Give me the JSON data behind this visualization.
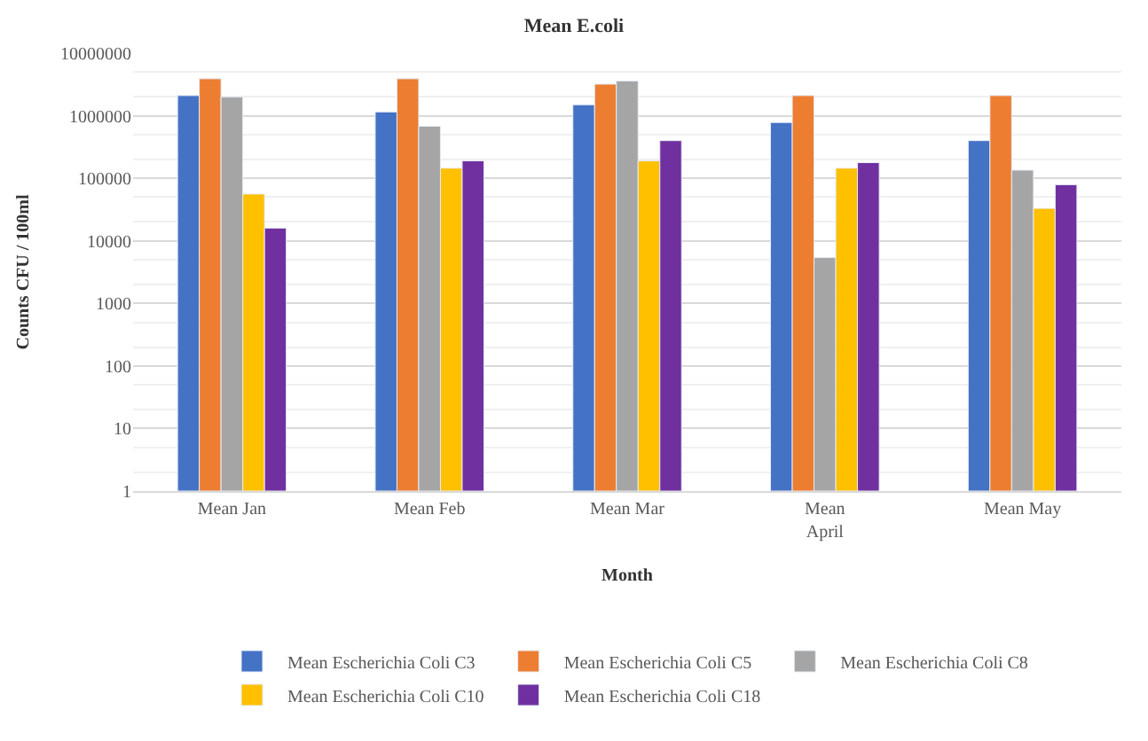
{
  "chart_data": {
    "type": "bar",
    "title": "Mean E.coli",
    "xlabel": "Month",
    "ylabel": "Counts CFU / 100ml",
    "categories": [
      "Mean Jan",
      "Mean Feb",
      "Mean Mar",
      "Mean April",
      "Mean May"
    ],
    "series": [
      {
        "name": "Mean Escherichia Coli C3",
        "color": "#4472c4",
        "values": [
          2100000,
          1150000,
          1500000,
          780000,
          400000
        ]
      },
      {
        "name": "Mean Escherichia Coli C5",
        "color": "#ed7d31",
        "values": [
          3900000,
          3900000,
          3200000,
          2100000,
          2100000
        ]
      },
      {
        "name": "Mean Escherichia Coli C8",
        "color": "#a5a5a5",
        "values": [
          2000000,
          680000,
          3600000,
          5400,
          135000
        ]
      },
      {
        "name": "Mean Escherichia Coli C10",
        "color": "#ffc000",
        "values": [
          56000,
          145000,
          190000,
          145000,
          33000
        ]
      },
      {
        "name": "Mean Escherichia Coli C18",
        "color": "#7030a0",
        "values": [
          16000,
          190000,
          400000,
          178000,
          79000
        ]
      }
    ],
    "log": "y",
    "ylim": [
      1,
      10000000
    ],
    "yticks": [
      1,
      10,
      100,
      1000,
      10000,
      100000,
      1000000,
      10000000
    ],
    "grid": "y",
    "legend": "bottom"
  }
}
